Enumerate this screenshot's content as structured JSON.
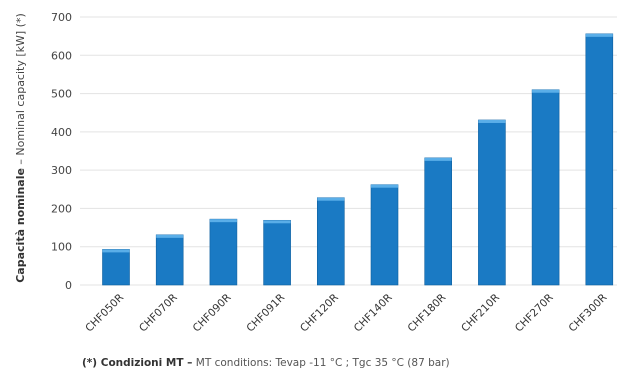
{
  "chart_data": {
    "type": "bar",
    "categories": [
      "CHF050R",
      "CHF070R",
      "CHF090R",
      "CHF091R",
      "CHF120R",
      "CHF140R",
      "CHF180R",
      "CHF210R",
      "CHF270R",
      "CHF300R"
    ],
    "values": [
      93,
      131,
      172,
      169,
      228,
      262,
      332,
      431,
      510,
      656
    ],
    "ylabel_bold": "Capacità nominale",
    "ylabel_rest": " – Nominal capacity  [kW] (*)",
    "ylim": [
      0,
      700
    ],
    "yticks": [
      0,
      100,
      200,
      300,
      400,
      500,
      600,
      700
    ],
    "grid": true,
    "colors": {
      "bar": "#1a7ac4",
      "bar_top": "#5aaee8",
      "bar_edge": "#0e5f9e"
    }
  },
  "footnote": {
    "bold": "(*) Condizioni MT –",
    "text": " MT conditions: Tevap -11 °C ; Tgc 35 °C (87 bar)"
  }
}
